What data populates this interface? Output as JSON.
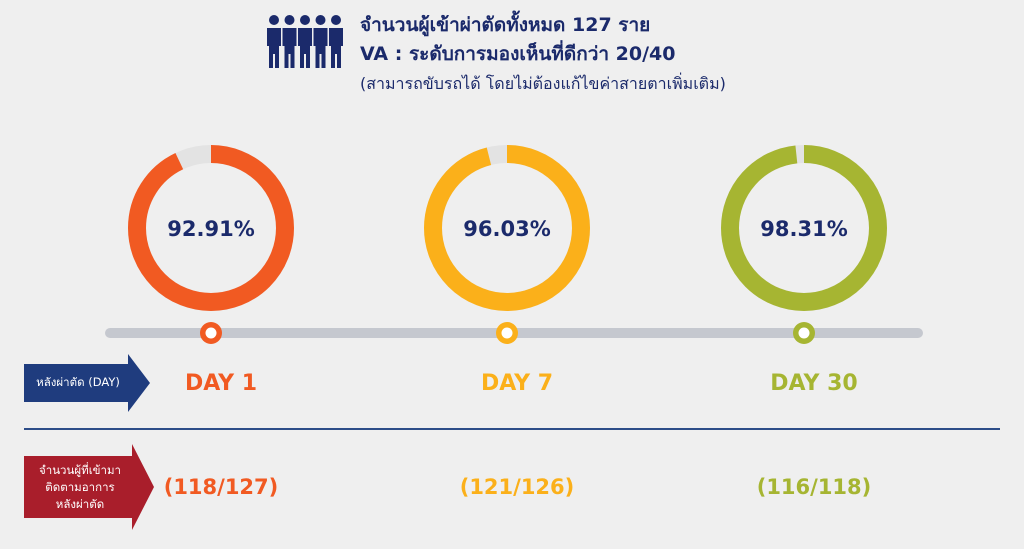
{
  "header": {
    "line1": "จำนวนผู้เข้าผ่าตัดทั้งหมด 127 ราย",
    "line2": "VA : ระดับการมองเห็นที่ดีกว่า 20/40",
    "line3": "(สามารถขับรถได้ โดยไม่ต้องแก้ไขค่าสายตาเพิ่มเติม)",
    "icon": "people-group-icon"
  },
  "tags": {
    "day_label": "หลังผ่าตัด (DAY)",
    "followup_label_lines": [
      "จำนวนผู้ที่เข้ามา",
      "ติดตามอาการ",
      "หลังผ่าตัด"
    ]
  },
  "colors": {
    "navy": "#1b2a6b",
    "tag_blue": "#1f3c7e",
    "tag_red": "#a91e2b",
    "ring_track": "#e3e3e3",
    "timeline": "#c5c8cf",
    "divider": "#2d4d88"
  },
  "chart_data": {
    "type": "donut",
    "items": [
      {
        "label": "DAY 1",
        "percent": 92.91,
        "percent_label": "92.91%",
        "count_label": "(118/127)",
        "color": "#f15a22"
      },
      {
        "label": "DAY 7",
        "percent": 96.03,
        "percent_label": "96.03%",
        "count_label": "(121/126)",
        "color": "#fbb01a"
      },
      {
        "label": "DAY 30",
        "percent": 98.31,
        "percent_label": "98.31%",
        "count_label": "(116/118)",
        "color": "#a6b532"
      }
    ]
  }
}
